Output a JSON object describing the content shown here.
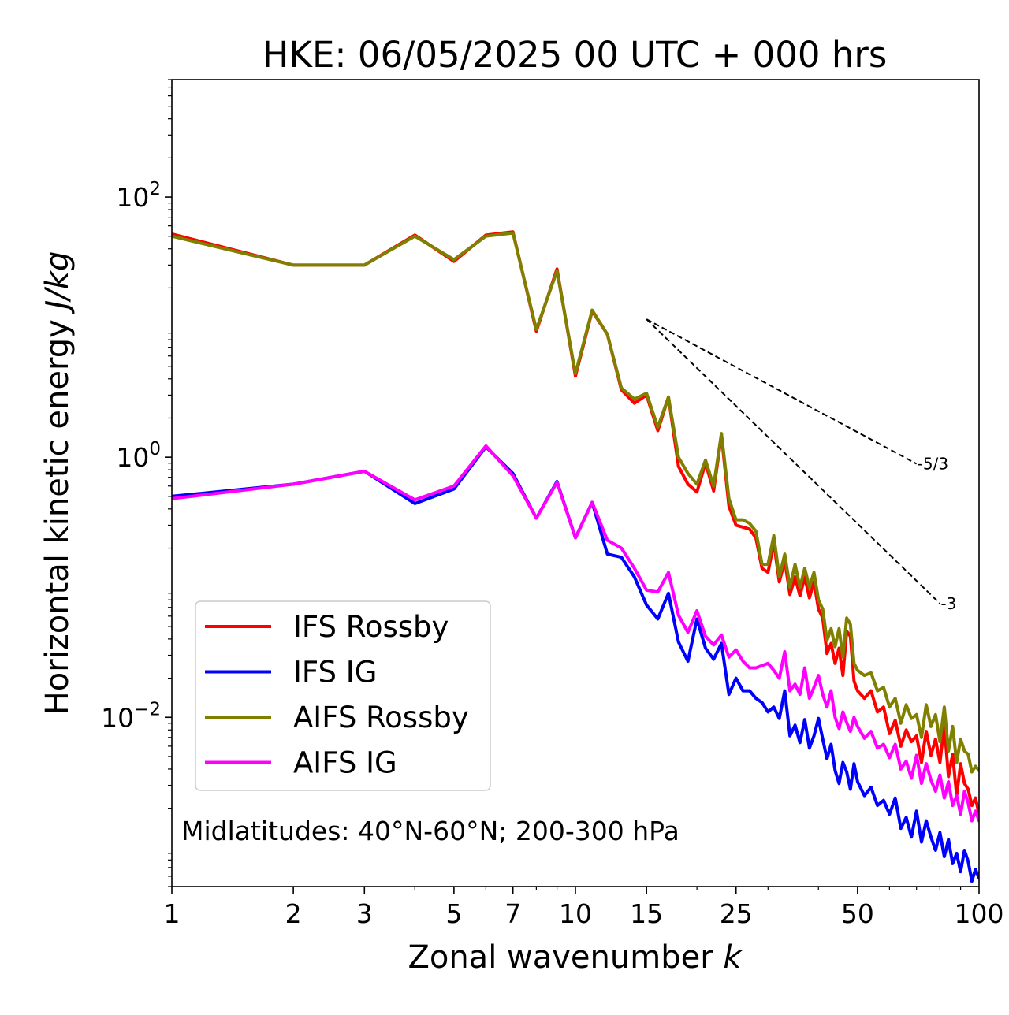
{
  "chart_data": {
    "type": "line",
    "title": "HKE: 06/05/2025 00 UTC + 000 hrs",
    "xlabel": "Zonal wavenumber",
    "xlabel_var": "k",
    "ylabel": "Horizontal kinetic energy",
    "ylabel_unit": "J/kg",
    "xscale": "log",
    "yscale": "log",
    "xlim": [
      1,
      100
    ],
    "ylim": [
      0.0005,
      800
    ],
    "xticks": [
      1,
      2,
      3,
      5,
      7,
      10,
      15,
      25,
      50,
      100
    ],
    "xtick_labels": [
      "1",
      "2",
      "3",
      "5",
      "7",
      "10",
      "15",
      "25",
      "50",
      "100"
    ],
    "yticks": [
      {
        "value": 100,
        "base": "10",
        "exp": "2"
      },
      {
        "value": 1,
        "base": "10",
        "exp": "0"
      },
      {
        "value": 0.01,
        "base": "10",
        "exp": "−2"
      }
    ],
    "annotation": "Midlatitudes: 40°N-60°N; 200-300 hPa",
    "legend_position": "lower-left",
    "series": [
      {
        "name": "IFS Rossby",
        "color": "#ff0000",
        "x": [
          1,
          2,
          3,
          4,
          5,
          6,
          7,
          8,
          9,
          10,
          11,
          12,
          13,
          14,
          15,
          16,
          17,
          18,
          19,
          20,
          21,
          22,
          23,
          24,
          25,
          26,
          27,
          28,
          29,
          30,
          31,
          32,
          33,
          34,
          35,
          36,
          37,
          38,
          39,
          40,
          41,
          42,
          43,
          44,
          45,
          46,
          47,
          48,
          49,
          50,
          52,
          54,
          56,
          58,
          60,
          62,
          64,
          66,
          68,
          70,
          72,
          74,
          76,
          78,
          80,
          82,
          84,
          86,
          88,
          90,
          92,
          94,
          96,
          98,
          100
        ],
        "values": [
          52,
          30,
          30,
          51,
          32,
          51,
          54,
          9.3,
          28,
          4.2,
          13.3,
          8.8,
          3.3,
          2.6,
          3.0,
          1.6,
          2.9,
          0.85,
          0.62,
          0.54,
          0.9,
          0.55,
          1.48,
          0.42,
          0.3,
          0.29,
          0.28,
          0.24,
          0.14,
          0.13,
          0.22,
          0.11,
          0.16,
          0.088,
          0.12,
          0.086,
          0.12,
          0.083,
          0.11,
          0.068,
          0.058,
          0.031,
          0.037,
          0.026,
          0.034,
          0.021,
          0.046,
          0.042,
          0.019,
          0.016,
          0.014,
          0.016,
          0.011,
          0.012,
          0.0075,
          0.0095,
          0.006,
          0.008,
          0.0065,
          0.0072,
          0.0045,
          0.0078,
          0.0051,
          0.0068,
          0.0045,
          0.0087,
          0.0035,
          0.0052,
          0.0025,
          0.0044,
          0.0031,
          0.0028,
          0.0021,
          0.0024,
          0.0018
        ]
      },
      {
        "name": "IFS IG",
        "color": "#0000ff",
        "x": [
          1,
          2,
          3,
          4,
          5,
          6,
          7,
          8,
          9,
          10,
          11,
          12,
          13,
          14,
          15,
          16,
          17,
          18,
          19,
          20,
          21,
          22,
          23,
          24,
          25,
          26,
          27,
          28,
          29,
          30,
          31,
          32,
          33,
          34,
          35,
          36,
          37,
          38,
          39,
          40,
          41,
          42,
          43,
          44,
          45,
          46,
          47,
          48,
          49,
          50,
          52,
          54,
          56,
          58,
          60,
          62,
          64,
          66,
          68,
          70,
          72,
          74,
          76,
          78,
          80,
          82,
          84,
          86,
          88,
          90,
          92,
          94,
          96,
          98,
          100
        ],
        "values": [
          0.5,
          0.62,
          0.78,
          0.44,
          0.57,
          1.2,
          0.75,
          0.34,
          0.65,
          0.24,
          0.45,
          0.18,
          0.17,
          0.12,
          0.073,
          0.057,
          0.09,
          0.038,
          0.027,
          0.057,
          0.034,
          0.028,
          0.037,
          0.015,
          0.02,
          0.016,
          0.016,
          0.014,
          0.013,
          0.011,
          0.012,
          0.0098,
          0.016,
          0.0072,
          0.0087,
          0.0064,
          0.0096,
          0.0058,
          0.0072,
          0.0098,
          0.0068,
          0.0048,
          0.0062,
          0.0039,
          0.0031,
          0.0045,
          0.0038,
          0.0028,
          0.0044,
          0.0032,
          0.0025,
          0.0029,
          0.0021,
          0.0023,
          0.0018,
          0.0024,
          0.0014,
          0.0017,
          0.0012,
          0.0019,
          0.0011,
          0.0016,
          0.0012,
          0.00095,
          0.0013,
          0.00085,
          0.00115,
          0.00075,
          0.0009,
          0.00065,
          0.00095,
          0.00078,
          0.00055,
          0.00068,
          0.00058
        ]
      },
      {
        "name": "AIFS Rossby",
        "color": "#808000",
        "x": [
          1,
          2,
          3,
          4,
          5,
          6,
          7,
          8,
          9,
          10,
          11,
          12,
          13,
          14,
          15,
          16,
          17,
          18,
          19,
          20,
          21,
          22,
          23,
          24,
          25,
          26,
          27,
          28,
          29,
          30,
          31,
          32,
          33,
          34,
          35,
          36,
          37,
          38,
          39,
          40,
          41,
          42,
          43,
          44,
          45,
          46,
          47,
          48,
          49,
          50,
          52,
          54,
          56,
          58,
          60,
          62,
          64,
          66,
          68,
          70,
          72,
          74,
          76,
          78,
          80,
          82,
          84,
          86,
          88,
          90,
          92,
          94,
          96,
          98,
          100
        ],
        "values": [
          50,
          30,
          30,
          50,
          33,
          50,
          53,
          9.6,
          27,
          4.4,
          13.5,
          8.8,
          3.4,
          2.8,
          3.1,
          1.7,
          2.9,
          1.0,
          0.75,
          0.62,
          0.95,
          0.6,
          1.52,
          0.48,
          0.33,
          0.33,
          0.31,
          0.27,
          0.15,
          0.15,
          0.25,
          0.12,
          0.18,
          0.1,
          0.15,
          0.1,
          0.14,
          0.1,
          0.13,
          0.08,
          0.068,
          0.039,
          0.048,
          0.035,
          0.048,
          0.029,
          0.058,
          0.052,
          0.026,
          0.023,
          0.021,
          0.022,
          0.016,
          0.017,
          0.012,
          0.014,
          0.009,
          0.0125,
          0.0098,
          0.0105,
          0.007,
          0.0125,
          0.0085,
          0.0105,
          0.0065,
          0.012,
          0.0055,
          0.0085,
          0.0045,
          0.0068,
          0.0055,
          0.0052,
          0.0038,
          0.0042,
          0.0039
        ]
      },
      {
        "name": "AIFS IG",
        "color": "#ff00ff",
        "x": [
          1,
          2,
          3,
          4,
          5,
          6,
          7,
          8,
          9,
          10,
          11,
          12,
          13,
          14,
          15,
          16,
          17,
          18,
          19,
          20,
          21,
          22,
          23,
          24,
          25,
          26,
          27,
          28,
          29,
          30,
          31,
          32,
          33,
          34,
          35,
          36,
          37,
          38,
          39,
          40,
          41,
          42,
          43,
          44,
          45,
          46,
          47,
          48,
          49,
          50,
          52,
          54,
          56,
          58,
          60,
          62,
          64,
          66,
          68,
          70,
          72,
          74,
          76,
          78,
          80,
          82,
          84,
          86,
          88,
          90,
          92,
          94,
          96,
          98,
          100
        ],
        "values": [
          0.48,
          0.62,
          0.78,
          0.47,
          0.6,
          1.22,
          0.72,
          0.34,
          0.64,
          0.24,
          0.45,
          0.23,
          0.2,
          0.14,
          0.095,
          0.092,
          0.13,
          0.061,
          0.045,
          0.066,
          0.042,
          0.036,
          0.043,
          0.029,
          0.033,
          0.027,
          0.024,
          0.024,
          0.025,
          0.026,
          0.023,
          0.02,
          0.032,
          0.016,
          0.018,
          0.015,
          0.024,
          0.014,
          0.017,
          0.021,
          0.015,
          0.012,
          0.016,
          0.01,
          0.0082,
          0.011,
          0.0091,
          0.0078,
          0.01,
          0.0085,
          0.0069,
          0.0078,
          0.0058,
          0.0062,
          0.0049,
          0.0062,
          0.004,
          0.0046,
          0.0034,
          0.0051,
          0.0031,
          0.0044,
          0.0033,
          0.0027,
          0.0036,
          0.0024,
          0.0032,
          0.0021,
          0.0025,
          0.0018,
          0.0027,
          0.0022,
          0.0016,
          0.0019,
          0.0016
        ]
      }
    ],
    "reference_lines": [
      {
        "label": "-5/3",
        "slope": -1.6667,
        "x_start": 15,
        "y_start": 11.5,
        "x_end": 70,
        "y_end": 0.89
      },
      {
        "label": "-3",
        "slope": -3,
        "x_start": 15,
        "y_start": 11.5,
        "x_end": 80,
        "y_end": 0.075
      }
    ]
  }
}
